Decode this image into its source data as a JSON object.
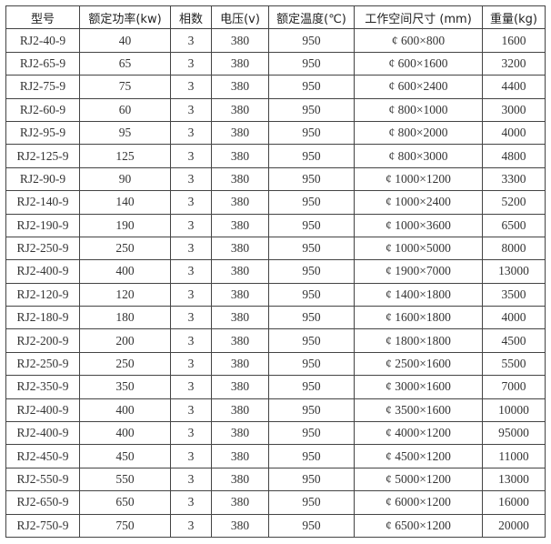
{
  "headers": [
    "型号",
    "额定功率(kw)",
    "相数",
    "电压(v)",
    "额定温度(℃)",
    "工作空间尺寸 (mm)",
    "重量(kg)"
  ],
  "rows": [
    [
      "RJ2-40-9",
      "40",
      "3",
      "380",
      "950",
      "¢ 600×800",
      "1600"
    ],
    [
      "RJ2-65-9",
      "65",
      "3",
      "380",
      "950",
      "¢ 600×1600",
      "3200"
    ],
    [
      "RJ2-75-9",
      "75",
      "3",
      "380",
      "950",
      "¢ 600×2400",
      "4400"
    ],
    [
      "RJ2-60-9",
      "60",
      "3",
      "380",
      "950",
      "¢ 800×1000",
      "3000"
    ],
    [
      "RJ2-95-9",
      "95",
      "3",
      "380",
      "950",
      "¢ 800×2000",
      "4000"
    ],
    [
      "RJ2-125-9",
      "125",
      "3",
      "380",
      "950",
      "¢ 800×3000",
      "4800"
    ],
    [
      "RJ2-90-9",
      "90",
      "3",
      "380",
      "950",
      "¢ 1000×1200",
      "3300"
    ],
    [
      "RJ2-140-9",
      "140",
      "3",
      "380",
      "950",
      "¢ 1000×2400",
      "5200"
    ],
    [
      "RJ2-190-9",
      "190",
      "3",
      "380",
      "950",
      "¢ 1000×3600",
      "6500"
    ],
    [
      "RJ2-250-9",
      "250",
      "3",
      "380",
      "950",
      "¢ 1000×5000",
      "8000"
    ],
    [
      "RJ2-400-9",
      "400",
      "3",
      "380",
      "950",
      "¢ 1900×7000",
      "13000"
    ],
    [
      "RJ2-120-9",
      "120",
      "3",
      "380",
      "950",
      "¢ 1400×1800",
      "3500"
    ],
    [
      "RJ2-180-9",
      "180",
      "3",
      "380",
      "950",
      "¢ 1600×1800",
      "4000"
    ],
    [
      "RJ2-200-9",
      "200",
      "3",
      "380",
      "950",
      "¢ 1800×1800",
      "4500"
    ],
    [
      "RJ2-250-9",
      "250",
      "3",
      "380",
      "950",
      "¢ 2500×1600",
      "5500"
    ],
    [
      "RJ2-350-9",
      "350",
      "3",
      "380",
      "950",
      "¢ 3000×1600",
      "7000"
    ],
    [
      "RJ2-400-9",
      "400",
      "3",
      "380",
      "950",
      "¢ 3500×1600",
      "10000"
    ],
    [
      "RJ2-400-9",
      "400",
      "3",
      "380",
      "950",
      "¢ 4000×1200",
      "95000"
    ],
    [
      "RJ2-450-9",
      "450",
      "3",
      "380",
      "950",
      "¢ 4500×1200",
      "11000"
    ],
    [
      "RJ2-550-9",
      "550",
      "3",
      "380",
      "950",
      "¢ 5000×1200",
      "13000"
    ],
    [
      "RJ2-650-9",
      "650",
      "3",
      "380",
      "950",
      "¢ 6000×1200",
      "16000"
    ],
    [
      "RJ2-750-9",
      "750",
      "3",
      "380",
      "950",
      "¢ 6500×1200",
      "20000"
    ]
  ]
}
